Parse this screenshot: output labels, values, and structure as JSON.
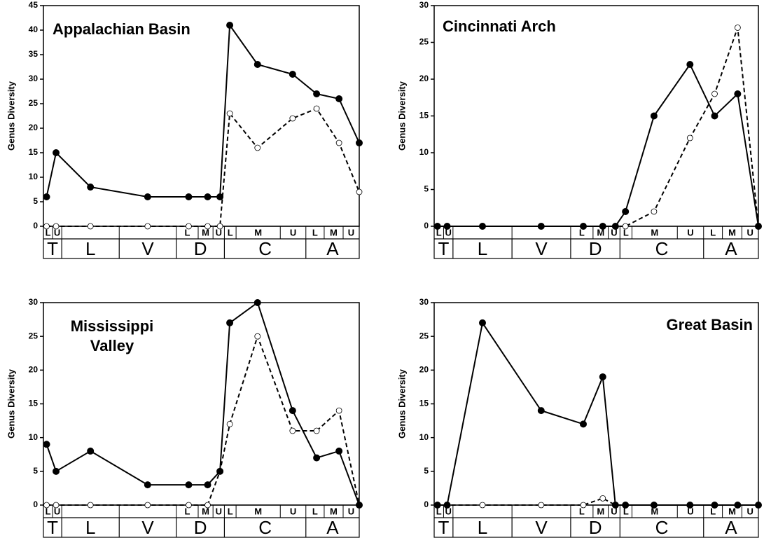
{
  "chart_data": [
    {
      "type": "line",
      "title": "Appalachian Basin",
      "y_label": "Genus Diversity",
      "categories": [
        "L",
        "U",
        null,
        null,
        "L",
        "M",
        "U",
        "L",
        "M",
        "U",
        "L",
        "M",
        "U"
      ],
      "x_groups": [
        {
          "label": "T",
          "size": 2
        },
        {
          "label": "L",
          "size": 1
        },
        {
          "label": "V",
          "size": 1
        },
        {
          "label": "D",
          "size": 3
        },
        {
          "label": "C",
          "size": 3
        },
        {
          "label": "A",
          "size": 3
        }
      ],
      "series": [
        {
          "color": "#000000",
          "style": "solid",
          "marker": "filled",
          "values": [
            6,
            15,
            8,
            6,
            6,
            6,
            6,
            41,
            33,
            31,
            27,
            26,
            17
          ]
        },
        {
          "color": "#000000",
          "style": "dashed",
          "marker": "open",
          "values": [
            0,
            0,
            0,
            0,
            0,
            0,
            0,
            23,
            16,
            22,
            24,
            17,
            7
          ]
        }
      ],
      "ylim": [
        0,
        45
      ],
      "yticks": [
        0,
        5,
        10,
        15,
        20,
        25,
        30,
        35,
        40,
        45
      ]
    },
    {
      "type": "line",
      "title": "Cincinnati Arch",
      "y_label": "Genus Diversity",
      "categories": [
        "L",
        "U",
        null,
        null,
        "L",
        "M",
        "U",
        "L",
        "M",
        "U",
        "L",
        "M",
        "U"
      ],
      "x_groups": [
        {
          "label": "T",
          "size": 2
        },
        {
          "label": "L",
          "size": 1
        },
        {
          "label": "V",
          "size": 1
        },
        {
          "label": "D",
          "size": 3
        },
        {
          "label": "C",
          "size": 3
        },
        {
          "label": "A",
          "size": 3
        }
      ],
      "series": [
        {
          "color": "#000000",
          "style": "solid",
          "marker": "filled",
          "values": [
            0,
            0,
            0,
            0,
            0,
            0,
            0,
            2,
            15,
            22,
            15,
            18,
            0
          ]
        },
        {
          "color": "#000000",
          "style": "dashed",
          "marker": "open",
          "values": [
            0,
            0,
            0,
            0,
            0,
            0,
            0,
            0,
            2,
            12,
            18,
            27,
            0
          ]
        }
      ],
      "ylim": [
        0,
        30
      ],
      "yticks": [
        0,
        5,
        10,
        15,
        20,
        25,
        30
      ]
    },
    {
      "type": "line",
      "title": "Mississippi Valley",
      "y_label": "Genus Diversity",
      "categories": [
        "L",
        "U",
        null,
        null,
        "L",
        "M",
        "U",
        "L",
        "M",
        "U",
        "L",
        "M",
        "U"
      ],
      "x_groups": [
        {
          "label": "T",
          "size": 2
        },
        {
          "label": "L",
          "size": 1
        },
        {
          "label": "V",
          "size": 1
        },
        {
          "label": "D",
          "size": 3
        },
        {
          "label": "C",
          "size": 3
        },
        {
          "label": "A",
          "size": 3
        }
      ],
      "series": [
        {
          "color": "#000000",
          "style": "solid",
          "marker": "filled",
          "values": [
            9,
            5,
            8,
            3,
            3,
            3,
            5,
            27,
            30,
            14,
            7,
            8,
            0
          ]
        },
        {
          "color": "#000000",
          "style": "dashed",
          "marker": "open",
          "values": [
            0,
            0,
            0,
            0,
            0,
            0,
            5,
            12,
            25,
            11,
            11,
            14,
            0
          ]
        }
      ],
      "ylim": [
        0,
        30
      ],
      "yticks": [
        0,
        5,
        10,
        15,
        20,
        25,
        30
      ]
    },
    {
      "type": "line",
      "title": "Great Basin",
      "y_label": "Genus Diversity",
      "categories": [
        "L",
        "U",
        null,
        null,
        "L",
        "M",
        "U",
        "L",
        "M",
        "U",
        "L",
        "M",
        "U"
      ],
      "x_groups": [
        {
          "label": "T",
          "size": 2
        },
        {
          "label": "L",
          "size": 1
        },
        {
          "label": "V",
          "size": 1
        },
        {
          "label": "D",
          "size": 3
        },
        {
          "label": "C",
          "size": 3
        },
        {
          "label": "A",
          "size": 3
        }
      ],
      "series": [
        {
          "color": "#000000",
          "style": "solid",
          "marker": "filled",
          "values": [
            0,
            0,
            27,
            14,
            12,
            19,
            0,
            0,
            0,
            0,
            0,
            0,
            0
          ]
        },
        {
          "color": "#000000",
          "style": "dashed",
          "marker": "open",
          "values": [
            0,
            0,
            0,
            0,
            0,
            1,
            0,
            0,
            0,
            0,
            0,
            0,
            0
          ]
        }
      ],
      "ylim": [
        0,
        30
      ],
      "yticks": [
        0,
        5,
        10,
        15,
        20,
        25,
        30
      ]
    }
  ]
}
